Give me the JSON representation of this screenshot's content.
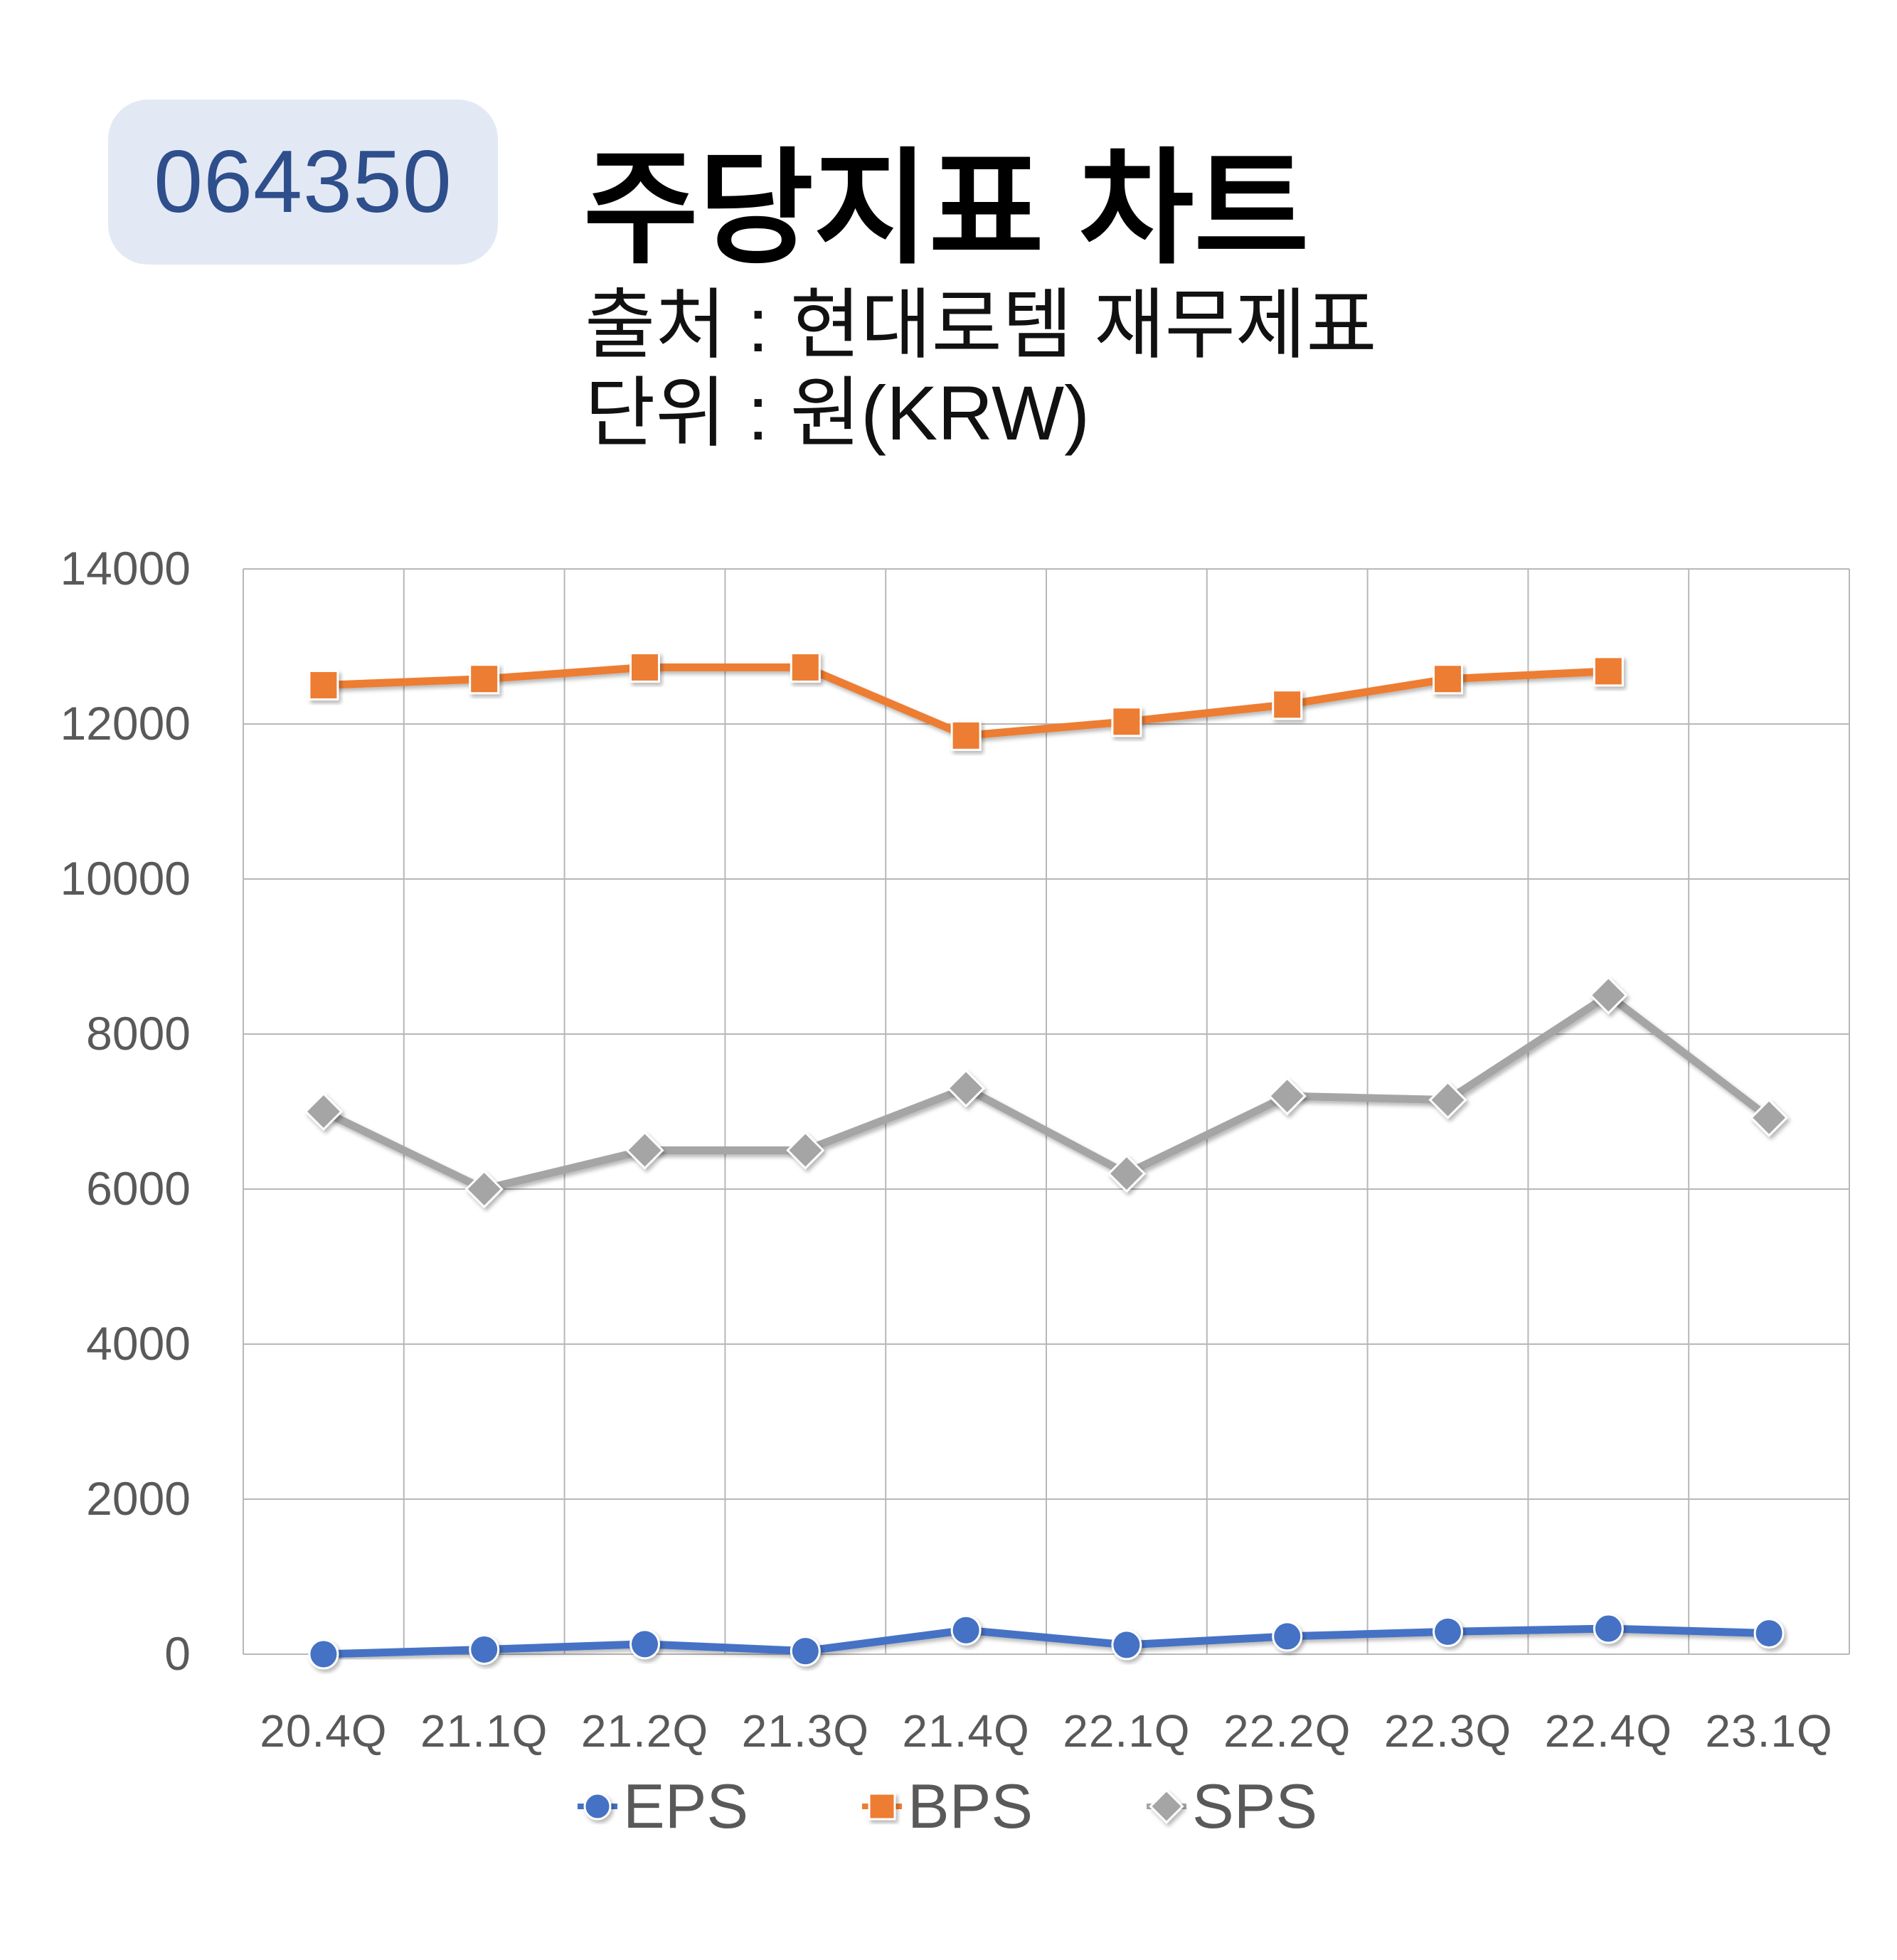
{
  "header": {
    "code": "064350",
    "title": "주당지표 차트",
    "source_line": "출처 : 현대로템 재무제표",
    "unit_line": "단위 : 원(KRW)"
  },
  "colors": {
    "EPS": "#4472c4",
    "BPS": "#ed7d31",
    "SPS": "#a5a5a5",
    "grid": "#b8b8b8",
    "tick_text": "#595959"
  },
  "chart_data": {
    "type": "line",
    "categories": [
      "20.4Q",
      "21.1Q",
      "21.2Q",
      "21.3Q",
      "21.4Q",
      "22.1Q",
      "22.2Q",
      "22.3Q",
      "22.4Q",
      "23.1Q"
    ],
    "series": [
      {
        "name": "EPS",
        "marker": "circle",
        "values": [
          0,
          60,
          130,
          40,
          310,
          120,
          230,
          290,
          330,
          270
        ]
      },
      {
        "name": "BPS",
        "marker": "square",
        "values": [
          12500,
          12580,
          12730,
          12730,
          11850,
          12030,
          12250,
          12580,
          12680,
          null
        ]
      },
      {
        "name": "SPS",
        "marker": "diamond",
        "values": [
          7000,
          6000,
          6500,
          6500,
          7300,
          6200,
          7200,
          7150,
          8500,
          6920
        ]
      }
    ],
    "yticks": [
      "0",
      "2000",
      "4000",
      "6000",
      "8000",
      "10000",
      "12000",
      "14000"
    ],
    "ylim": [
      0,
      14000
    ],
    "grid": true,
    "legend_position": "bottom"
  }
}
